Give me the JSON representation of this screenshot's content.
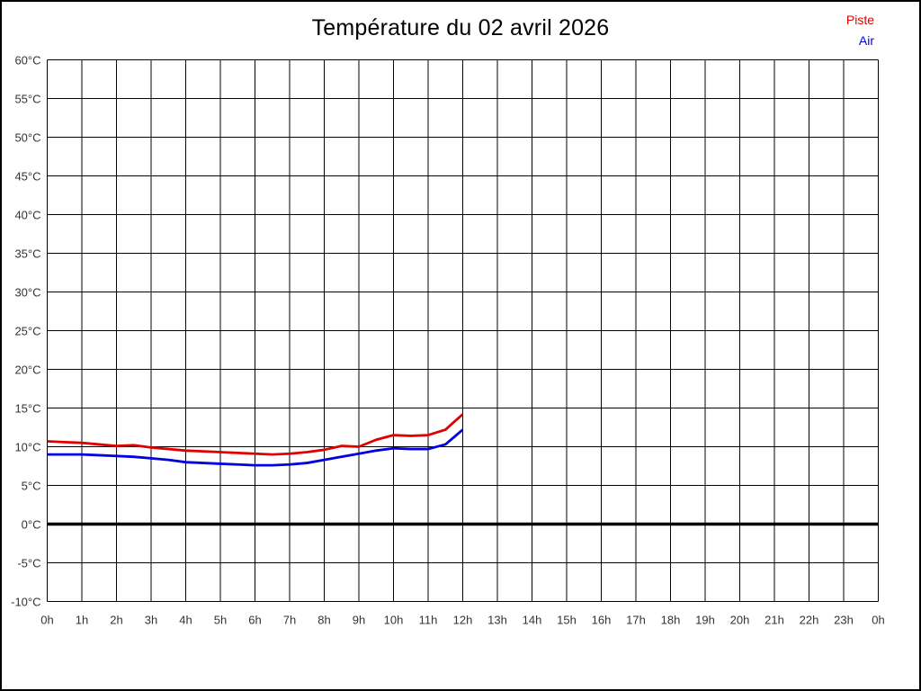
{
  "title": "Température du 02 avril 2026",
  "legend": {
    "items": [
      {
        "label": "Piste",
        "color": "#e00000"
      },
      {
        "label": "Air",
        "color": "#0000e0"
      }
    ]
  },
  "chart_data": {
    "type": "line",
    "title": "Température du 02 avril 2026",
    "xlabel": "",
    "ylabel": "",
    "x_unit": "hours",
    "xlim": [
      0,
      24
    ],
    "ylim": [
      -10,
      60
    ],
    "grid": true,
    "legend_position": "top-right",
    "zero_line_value": 0,
    "x_ticks": [
      {
        "value": 0,
        "label": "0h"
      },
      {
        "value": 1,
        "label": "1h"
      },
      {
        "value": 2,
        "label": "2h"
      },
      {
        "value": 3,
        "label": "3h"
      },
      {
        "value": 4,
        "label": "4h"
      },
      {
        "value": 5,
        "label": "5h"
      },
      {
        "value": 6,
        "label": "6h"
      },
      {
        "value": 7,
        "label": "7h"
      },
      {
        "value": 8,
        "label": "8h"
      },
      {
        "value": 9,
        "label": "9h"
      },
      {
        "value": 10,
        "label": "10h"
      },
      {
        "value": 11,
        "label": "11h"
      },
      {
        "value": 12,
        "label": "12h"
      },
      {
        "value": 13,
        "label": "13h"
      },
      {
        "value": 14,
        "label": "14h"
      },
      {
        "value": 15,
        "label": "15h"
      },
      {
        "value": 16,
        "label": "16h"
      },
      {
        "value": 17,
        "label": "17h"
      },
      {
        "value": 18,
        "label": "18h"
      },
      {
        "value": 19,
        "label": "19h"
      },
      {
        "value": 20,
        "label": "20h"
      },
      {
        "value": 21,
        "label": "21h"
      },
      {
        "value": 22,
        "label": "22h"
      },
      {
        "value": 23,
        "label": "23h"
      },
      {
        "value": 24,
        "label": "0h"
      }
    ],
    "y_ticks": [
      {
        "value": 60,
        "label": "60°C"
      },
      {
        "value": 55,
        "label": "55°C"
      },
      {
        "value": 50,
        "label": "50°C"
      },
      {
        "value": 45,
        "label": "45°C"
      },
      {
        "value": 40,
        "label": "40°C"
      },
      {
        "value": 35,
        "label": "35°C"
      },
      {
        "value": 30,
        "label": "30°C"
      },
      {
        "value": 25,
        "label": "25°C"
      },
      {
        "value": 20,
        "label": "20°C"
      },
      {
        "value": 15,
        "label": "15°C"
      },
      {
        "value": 10,
        "label": "10°C"
      },
      {
        "value": 5,
        "label": "5°C"
      },
      {
        "value": 0,
        "label": "0°C"
      },
      {
        "value": -5,
        "label": "-5°C"
      },
      {
        "value": -10,
        "label": "-10°C"
      }
    ],
    "x": [
      0,
      0.5,
      1,
      1.5,
      2,
      2.5,
      3,
      3.5,
      4,
      4.5,
      5,
      5.5,
      6,
      6.5,
      7,
      7.5,
      8,
      8.5,
      9,
      9.5,
      10,
      10.5,
      11,
      11.5,
      12
    ],
    "series": [
      {
        "name": "Piste",
        "color": "#e00000",
        "values": [
          10.7,
          10.6,
          10.5,
          10.3,
          10.1,
          10.2,
          9.9,
          9.7,
          9.5,
          9.4,
          9.3,
          9.2,
          9.1,
          9.0,
          9.1,
          9.3,
          9.6,
          10.1,
          10.0,
          10.9,
          11.5,
          11.4,
          11.5,
          12.2,
          14.2
        ]
      },
      {
        "name": "Air",
        "color": "#0000e0",
        "values": [
          9.0,
          9.0,
          9.0,
          8.9,
          8.8,
          8.7,
          8.5,
          8.3,
          8.0,
          7.9,
          7.8,
          7.7,
          7.6,
          7.6,
          7.7,
          7.9,
          8.3,
          8.7,
          9.1,
          9.5,
          9.8,
          9.7,
          9.7,
          10.3,
          12.2
        ]
      }
    ]
  }
}
